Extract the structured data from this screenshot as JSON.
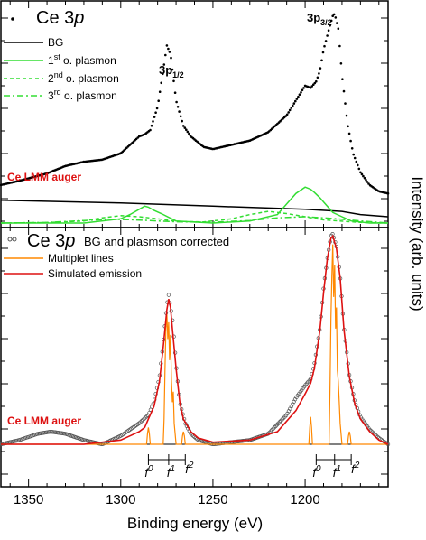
{
  "chart_data": [
    {
      "panel": "top",
      "type": "line",
      "title": "Ce 3p",
      "xlabel": "Binding energy (eV)",
      "ylabel": "Intensity (arb. units)",
      "xlim": [
        1365,
        1155
      ],
      "x_reversed": true,
      "xticks": [
        1350,
        1300,
        1250,
        1200
      ],
      "y_tick_labels_shown": false,
      "legend_placement": "top-left",
      "legend": [
        {
          "label": "Ce 3p",
          "style": "dots"
        },
        {
          "label": "BG",
          "style": "solid-black"
        },
        {
          "label_base": "1",
          "label_sup": "st",
          "label_rest": " o. plasmon",
          "style": "solid-green"
        },
        {
          "label_base": "2",
          "label_sup": "nd",
          "label_rest": " o. plasmon",
          "style": "dashed-green"
        },
        {
          "label_base": "3",
          "label_sup": "rd",
          "label_rest": " o. plasmon",
          "style": "dashdot-green"
        }
      ],
      "annotations": [
        {
          "base": "3p",
          "sub": "1/2",
          "x": 1275
        },
        {
          "base": "3p",
          "sub": "3/2",
          "x": 1184
        },
        {
          "text": "Ce LMM auger"
        }
      ],
      "series": [
        {
          "name": "Ce 3p",
          "style": "dots",
          "color": "#000000",
          "x": [
            1365,
            1355,
            1340,
            1330,
            1320,
            1310,
            1300,
            1295,
            1290,
            1287,
            1284,
            1280,
            1277,
            1275,
            1273,
            1270,
            1266,
            1262,
            1255,
            1250,
            1240,
            1230,
            1220,
            1210,
            1205,
            1200,
            1197,
            1194,
            1192,
            1190,
            1187,
            1185,
            1184,
            1182,
            1180,
            1177,
            1174,
            1170,
            1165,
            1160,
            1155
          ],
          "y": [
            0.18,
            0.2,
            0.235,
            0.27,
            0.29,
            0.3,
            0.33,
            0.37,
            0.41,
            0.42,
            0.44,
            0.55,
            0.72,
            0.84,
            0.8,
            0.58,
            0.46,
            0.41,
            0.36,
            0.35,
            0.37,
            0.39,
            0.43,
            0.51,
            0.58,
            0.65,
            0.64,
            0.67,
            0.72,
            0.82,
            0.92,
            0.98,
            0.99,
            0.92,
            0.7,
            0.47,
            0.33,
            0.24,
            0.18,
            0.15,
            0.14
          ]
        },
        {
          "name": "BG",
          "style": "solid",
          "color": "#000000",
          "x": [
            1365,
            1300,
            1250,
            1200,
            1180,
            1170,
            1155
          ],
          "y": [
            0.108,
            0.095,
            0.08,
            0.065,
            0.055,
            0.04,
            0.03
          ]
        },
        {
          "name": "1st o. plasmon",
          "style": "solid",
          "color": "#33dd33",
          "x": [
            1365,
            1320,
            1300,
            1295,
            1290,
            1287,
            1285,
            1282,
            1278,
            1270,
            1250,
            1230,
            1215,
            1210,
            1205,
            1200,
            1197,
            1195,
            1192,
            1190,
            1185,
            1180,
            1175,
            1165,
            1155
          ],
          "y": [
            0.0,
            0.0,
            0.02,
            0.04,
            0.065,
            0.08,
            0.075,
            0.06,
            0.045,
            0.01,
            0.0,
            0.01,
            0.04,
            0.09,
            0.14,
            0.17,
            0.16,
            0.145,
            0.12,
            0.1,
            0.05,
            0.03,
            0.01,
            0.0,
            0.0
          ]
        },
        {
          "name": "2nd o. plasmon",
          "style": "dashed",
          "color": "#33dd33",
          "x": [
            1365,
            1340,
            1320,
            1310,
            1300,
            1290,
            1280,
            1270,
            1255,
            1240,
            1230,
            1220,
            1210,
            1200,
            1190,
            1170,
            1155
          ],
          "y": [
            0.0,
            0.002,
            0.01,
            0.025,
            0.035,
            0.03,
            0.02,
            0.008,
            0.005,
            0.02,
            0.04,
            0.055,
            0.045,
            0.03,
            0.015,
            0.003,
            0.0
          ]
        },
        {
          "name": "3rd o. plasmon",
          "style": "dashdot",
          "color": "#33dd33",
          "x": [
            1365,
            1340,
            1320,
            1305,
            1295,
            1285,
            1270,
            1250,
            1230,
            1215,
            1200,
            1185,
            1170,
            1155
          ],
          "y": [
            0.0,
            0.003,
            0.012,
            0.018,
            0.016,
            0.012,
            0.006,
            0.004,
            0.012,
            0.025,
            0.03,
            0.022,
            0.01,
            0.0
          ]
        }
      ]
    },
    {
      "panel": "bottom",
      "type": "line",
      "title": "Ce 3p",
      "title_suffix": "BG and plasmson corrected",
      "xlabel": "Binding energy (eV)",
      "xlim": [
        1365,
        1155
      ],
      "x_reversed": true,
      "xticks": [
        1350,
        1300,
        1250,
        1200
      ],
      "legend_placement": "top-left",
      "legend": [
        {
          "label": "Ce 3p BG and plasmson corrected",
          "style": "open-circles"
        },
        {
          "label": "Multiplet lines",
          "style": "solid-orange"
        },
        {
          "label": "Simulated emission",
          "style": "solid-red"
        }
      ],
      "annotations": [
        {
          "text": "Ce LMM auger"
        }
      ],
      "configuration_markers": [
        {
          "group": "3p1/2",
          "labels": [
            {
              "base": "f",
              "sup": "0"
            },
            {
              "base": "f",
              "sup": "1"
            },
            {
              "base": "f",
              "sup": "2"
            }
          ],
          "x": [
            1285,
            1274,
            1265
          ]
        },
        {
          "group": "3p3/2",
          "labels": [
            {
              "base": "f",
              "sup": "0"
            },
            {
              "base": "f",
              "sup": "1"
            },
            {
              "base": "f",
              "sup": "2"
            }
          ],
          "x": [
            1194,
            1184,
            1175
          ]
        }
      ],
      "series": [
        {
          "name": "Ce 3p BG and plasmson corrected",
          "style": "open-circles",
          "color": "#555555",
          "x": [
            1365,
            1355,
            1345,
            1338,
            1330,
            1320,
            1310,
            1300,
            1295,
            1290,
            1285,
            1282,
            1279,
            1277,
            1275,
            1274,
            1272,
            1270,
            1268,
            1265,
            1262,
            1258,
            1250,
            1240,
            1230,
            1220,
            1210,
            1205,
            1200,
            1197,
            1195,
            1192,
            1190,
            1188,
            1186,
            1185,
            1183,
            1181,
            1179,
            1176,
            1173,
            1170,
            1165,
            1160,
            1155
          ],
          "y": [
            0.0,
            0.02,
            0.05,
            0.06,
            0.05,
            0.02,
            0.0,
            0.04,
            0.07,
            0.1,
            0.14,
            0.2,
            0.32,
            0.48,
            0.66,
            0.71,
            0.6,
            0.38,
            0.2,
            0.1,
            0.05,
            0.02,
            0.0,
            0.01,
            0.02,
            0.05,
            0.14,
            0.22,
            0.28,
            0.31,
            0.38,
            0.55,
            0.74,
            0.88,
            0.99,
            1.0,
            0.94,
            0.8,
            0.56,
            0.33,
            0.2,
            0.13,
            0.07,
            0.03,
            0.0
          ]
        },
        {
          "name": "Multiplet lines",
          "style": "solid",
          "color": "#ff8800",
          "x": [
            1365,
            1300,
            1286,
            1285.5,
            1285,
            1284.5,
            1284,
            1277,
            1276.5,
            1276,
            1275.5,
            1275,
            1274.5,
            1274,
            1273.5,
            1273,
            1272.5,
            1272,
            1271.5,
            1271,
            1270,
            1267,
            1266.5,
            1266,
            1265.5,
            1265,
            1200,
            1198,
            1197.5,
            1197,
            1196.5,
            1196,
            1187,
            1186.5,
            1186,
            1185.5,
            1185,
            1184.5,
            1184,
            1183.5,
            1183,
            1182.5,
            1182,
            1181.5,
            1181,
            1180,
            1177,
            1176.5,
            1176,
            1175.5,
            1175,
            1155
          ],
          "y": [
            0,
            0,
            0,
            0.05,
            0.08,
            0.05,
            0,
            0,
            0.12,
            0.35,
            0.55,
            0.62,
            0.5,
            0.58,
            0.4,
            0.52,
            0.3,
            0.2,
            0.25,
            0.1,
            0,
            0,
            0.04,
            0.06,
            0.04,
            0,
            0,
            0,
            0.08,
            0.13,
            0.08,
            0,
            0,
            0.25,
            0.6,
            0.8,
            0.95,
            0.7,
            0.85,
            0.55,
            0.65,
            0.35,
            0.3,
            0.2,
            0.1,
            0,
            0,
            0.04,
            0.06,
            0.04,
            0,
            0
          ]
        },
        {
          "name": "Simulated emission",
          "style": "solid",
          "color": "#dd1111",
          "x": [
            1365,
            1340,
            1320,
            1300,
            1295,
            1290,
            1287,
            1285,
            1282,
            1279,
            1277,
            1275,
            1274,
            1273,
            1272,
            1270,
            1268,
            1266,
            1262,
            1258,
            1250,
            1230,
            1215,
            1205,
            1200,
            1197,
            1195,
            1192,
            1190,
            1188,
            1186,
            1185,
            1183,
            1181,
            1179,
            1176,
            1173,
            1170,
            1165,
            1160,
            1155
          ],
          "y": [
            0,
            0,
            0,
            0.02,
            0.04,
            0.06,
            0.08,
            0.12,
            0.18,
            0.3,
            0.46,
            0.64,
            0.69,
            0.65,
            0.55,
            0.36,
            0.2,
            0.12,
            0.06,
            0.03,
            0.01,
            0.02,
            0.06,
            0.16,
            0.24,
            0.29,
            0.36,
            0.54,
            0.72,
            0.88,
            0.98,
            0.99,
            0.93,
            0.79,
            0.55,
            0.32,
            0.19,
            0.12,
            0.06,
            0.02,
            0.0
          ]
        }
      ]
    }
  ]
}
